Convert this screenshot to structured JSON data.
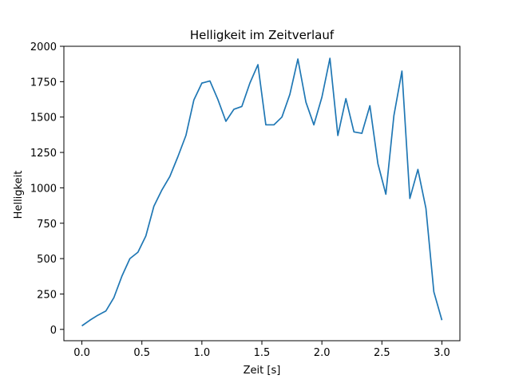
{
  "chart_data": {
    "type": "line",
    "title": "Helligkeit im Zeitverlauf",
    "xlabel": "Zeit [s]",
    "ylabel": "Helligkeit",
    "xlim": [
      -0.15,
      3.15
    ],
    "ylim": [
      -80,
      2000
    ],
    "xticks": [
      0.0,
      0.5,
      1.0,
      1.5,
      2.0,
      2.5,
      3.0
    ],
    "xtick_labels": [
      "0.0",
      "0.5",
      "1.0",
      "1.5",
      "2.0",
      "2.5",
      "3.0"
    ],
    "yticks": [
      0,
      250,
      500,
      750,
      1000,
      1250,
      1500,
      1750,
      2000
    ],
    "ytick_labels": [
      "0",
      "250",
      "500",
      "750",
      "1000",
      "1250",
      "1500",
      "1750",
      "2000"
    ],
    "grid": false,
    "series": [
      {
        "color": "#1f77b4",
        "x": [
          0.0,
          0.067,
          0.133,
          0.2,
          0.267,
          0.333,
          0.4,
          0.467,
          0.533,
          0.6,
          0.667,
          0.733,
          0.8,
          0.867,
          0.933,
          1.0,
          1.067,
          1.133,
          1.2,
          1.267,
          1.333,
          1.4,
          1.467,
          1.533,
          1.6,
          1.667,
          1.733,
          1.8,
          1.867,
          1.933,
          2.0,
          2.067,
          2.133,
          2.2,
          2.267,
          2.333,
          2.4,
          2.467,
          2.533,
          2.6,
          2.667,
          2.733,
          2.8,
          2.867,
          2.933,
          3.0
        ],
        "values": [
          25,
          65,
          100,
          130,
          225,
          375,
          500,
          545,
          660,
          870,
          985,
          1080,
          1220,
          1370,
          1620,
          1740,
          1755,
          1625,
          1470,
          1555,
          1575,
          1740,
          1870,
          1445,
          1445,
          1500,
          1660,
          1910,
          1605,
          1445,
          1640,
          1915,
          1370,
          1630,
          1395,
          1385,
          1580,
          1170,
          955,
          1510,
          1825,
          925,
          1130,
          855,
          265,
          65
        ]
      }
    ]
  }
}
